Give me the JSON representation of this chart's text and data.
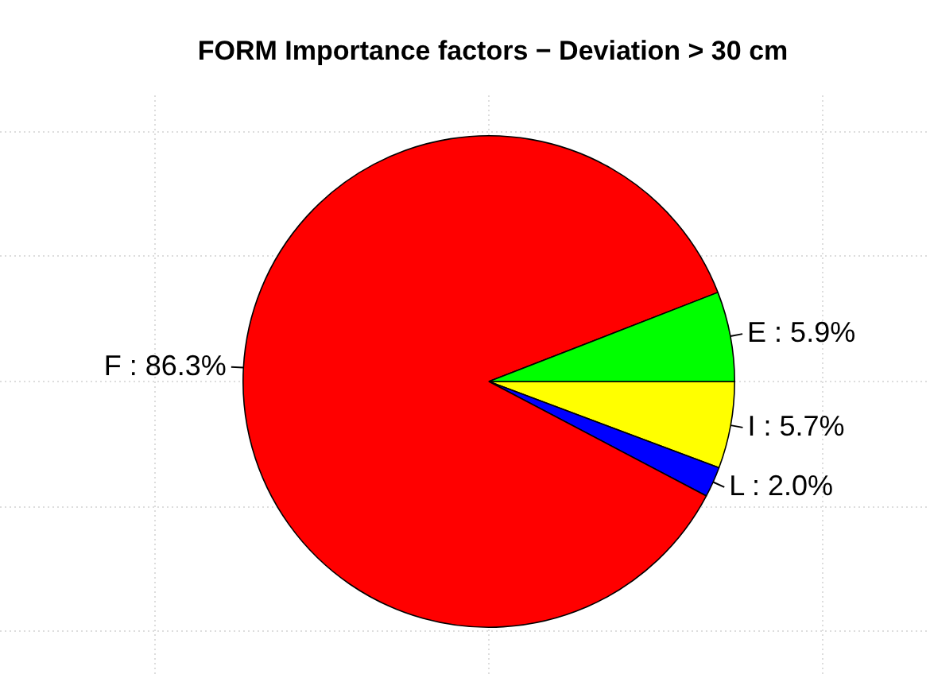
{
  "chart_data": {
    "type": "pie",
    "title": "FORM Importance factors − Deviation > 30 cm",
    "categories": [
      "I : 5.7%",
      "L : 2.0%",
      "F : 86.3%",
      "E : 5.9%"
    ],
    "values": [
      5.7,
      2.0,
      86.3,
      5.9
    ],
    "colors": [
      "#ffff00",
      "#0000ff",
      "#ff0000",
      "#00ff00"
    ],
    "grid": true,
    "legend": false
  }
}
